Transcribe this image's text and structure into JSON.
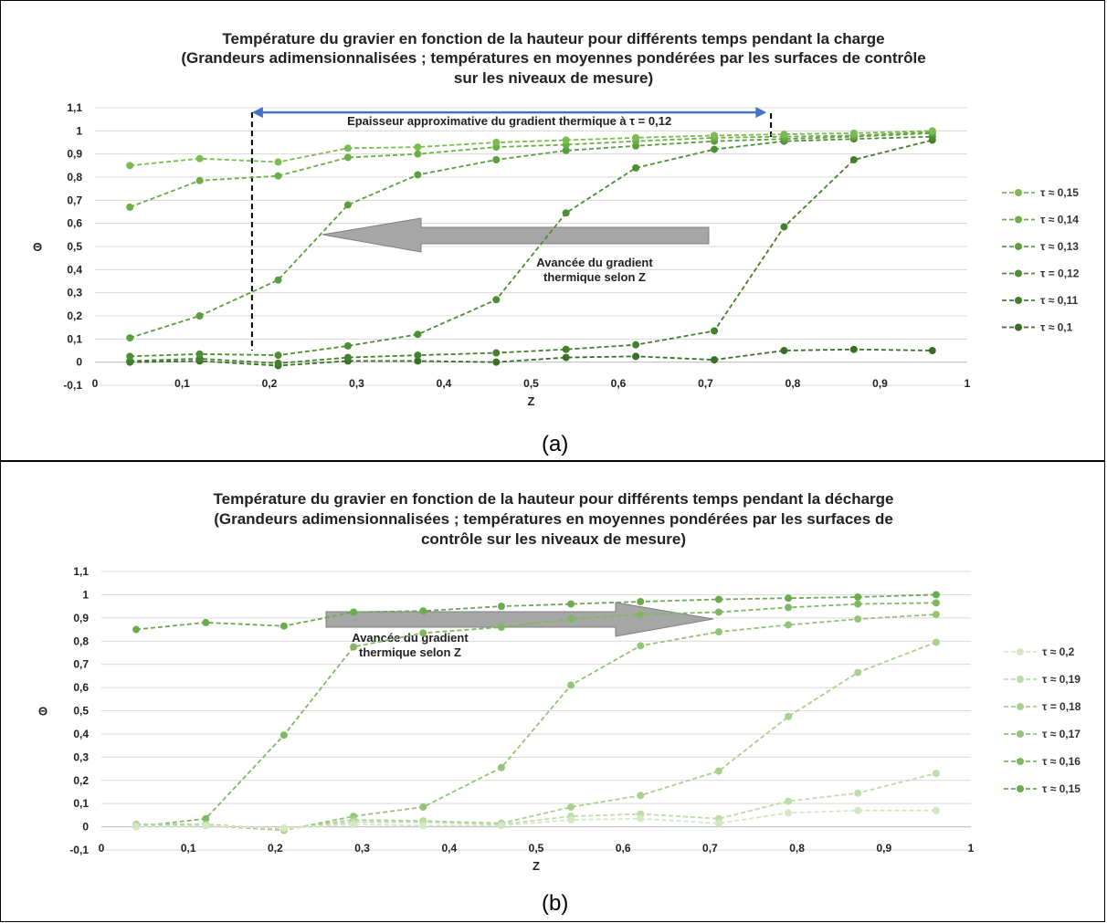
{
  "panels": {
    "a": {
      "label": "(a)"
    },
    "b": {
      "label": "(b)"
    }
  },
  "chart_data": [
    {
      "type": "line",
      "title": [
        "Température du gravier en fonction de la hauteur pour différents temps pendant la charge",
        "(Grandeurs adimensionnalisées ; températures en moyennes pondérées par les surfaces de contrôle",
        "sur les niveaux de mesure)"
      ],
      "xlabel": "Z",
      "ylabel": "Θ",
      "xlim": [
        0,
        1
      ],
      "ylim": [
        -0.1,
        1.1
      ],
      "x_ticks": [
        "0",
        "0,1",
        "0,2",
        "0,3",
        "0,4",
        "0,5",
        "0,6",
        "0,7",
        "0,8",
        "0,9",
        "1"
      ],
      "y_ticks": [
        "-0,1",
        "0",
        "0,1",
        "0,2",
        "0,3",
        "0,4",
        "0,5",
        "0,6",
        "0,7",
        "0,8",
        "0,9",
        "1",
        "1,1"
      ],
      "grid": true,
      "legend_position": "right",
      "x": [
        0.04,
        0.12,
        0.21,
        0.29,
        0.37,
        0.46,
        0.54,
        0.62,
        0.71,
        0.79,
        0.87,
        0.96
      ],
      "series": [
        {
          "name": "τ ≈ 0,15",
          "color": "#7cba52",
          "values": [
            0.85,
            0.88,
            0.865,
            0.925,
            0.93,
            0.95,
            0.96,
            0.97,
            0.98,
            0.985,
            0.99,
            1.0
          ]
        },
        {
          "name": "τ ≈ 0,14",
          "color": "#6aae45",
          "values": [
            0.67,
            0.785,
            0.805,
            0.885,
            0.9,
            0.93,
            0.94,
            0.955,
            0.97,
            0.975,
            0.98,
            0.995
          ]
        },
        {
          "name": "τ ≈ 0,13",
          "color": "#5b9e3d",
          "values": [
            0.105,
            0.2,
            0.355,
            0.68,
            0.81,
            0.875,
            0.915,
            0.935,
            0.955,
            0.965,
            0.975,
            0.99
          ]
        },
        {
          "name": "τ = 0,12",
          "color": "#4e8e33",
          "values": [
            0.025,
            0.035,
            0.03,
            0.07,
            0.12,
            0.27,
            0.645,
            0.84,
            0.92,
            0.955,
            0.965,
            0.975
          ]
        },
        {
          "name": "τ ≈ 0,11",
          "color": "#43802c",
          "values": [
            0.005,
            0.015,
            -0.005,
            0.02,
            0.03,
            0.04,
            0.055,
            0.075,
            0.135,
            0.585,
            0.875,
            0.96
          ]
        },
        {
          "name": "τ ≈ 0,1",
          "color": "#386f26",
          "values": [
            0.0,
            0.005,
            -0.015,
            0.005,
            0.005,
            0.0,
            0.02,
            0.025,
            0.01,
            0.05,
            0.055,
            0.05
          ]
        }
      ],
      "annotations": {
        "thickness_label": "Epaisseur approximative du gradient thermique à τ = 0,12",
        "arrow_label": [
          "Avancée du gradient",
          "thermique selon Z"
        ],
        "arrow_direction": "left"
      }
    },
    {
      "type": "line",
      "title": [
        "Température du gravier en fonction de la hauteur pour différents temps pendant la décharge",
        "(Grandeurs adimensionnalisées ; températures en moyennes pondérées par les surfaces de",
        "contrôle sur les niveaux de mesure)"
      ],
      "xlabel": "Z",
      "ylabel": "Θ",
      "xlim": [
        0,
        1
      ],
      "ylim": [
        -0.1,
        1.1
      ],
      "x_ticks": [
        "0",
        "0,1",
        "0,2",
        "0,3",
        "0,4",
        "0,5",
        "0,6",
        "0,7",
        "0,8",
        "0,9",
        "1"
      ],
      "y_ticks": [
        "-0,1",
        "0",
        "0,1",
        "0,2",
        "0,3",
        "0,4",
        "0,5",
        "0,6",
        "0,7",
        "0,8",
        "0,9",
        "1",
        "1,1"
      ],
      "grid": true,
      "legend_position": "right",
      "x": [
        0.04,
        0.12,
        0.21,
        0.29,
        0.37,
        0.46,
        0.54,
        0.62,
        0.71,
        0.79,
        0.87,
        0.96
      ],
      "series": [
        {
          "name": "τ ≈ 0,2",
          "color": "#d3e8c2",
          "values": [
            0.0,
            0.005,
            -0.005,
            0.01,
            0.005,
            0.005,
            0.03,
            0.035,
            0.015,
            0.06,
            0.07,
            0.07
          ]
        },
        {
          "name": "τ ≈ 0,19",
          "color": "#bddcaa",
          "values": [
            0.005,
            0.005,
            -0.01,
            0.02,
            0.02,
            0.01,
            0.045,
            0.055,
            0.035,
            0.11,
            0.145,
            0.23
          ]
        },
        {
          "name": "τ = 0,18",
          "color": "#a8d08f",
          "values": [
            0.01,
            0.01,
            -0.01,
            0.03,
            0.025,
            0.015,
            0.085,
            0.135,
            0.24,
            0.475,
            0.665,
            0.795
          ]
        },
        {
          "name": "τ ≈ 0,17",
          "color": "#93c47a",
          "values": [
            0.005,
            0.005,
            -0.015,
            0.045,
            0.085,
            0.255,
            0.61,
            0.78,
            0.84,
            0.87,
            0.895,
            0.915
          ]
        },
        {
          "name": "τ ≈ 0,16",
          "color": "#7fb862",
          "values": [
            0.0,
            0.035,
            0.395,
            0.775,
            0.835,
            0.86,
            0.895,
            0.915,
            0.925,
            0.945,
            0.96,
            0.965
          ]
        },
        {
          "name": "τ ≈ 0,15",
          "color": "#6aab4a",
          "values": [
            0.85,
            0.88,
            0.865,
            0.925,
            0.93,
            0.95,
            0.96,
            0.97,
            0.98,
            0.985,
            0.99,
            1.0
          ]
        }
      ],
      "annotations": {
        "arrow_label": [
          "Avancée du gradient",
          "thermique selon Z"
        ],
        "arrow_direction": "right"
      }
    }
  ]
}
